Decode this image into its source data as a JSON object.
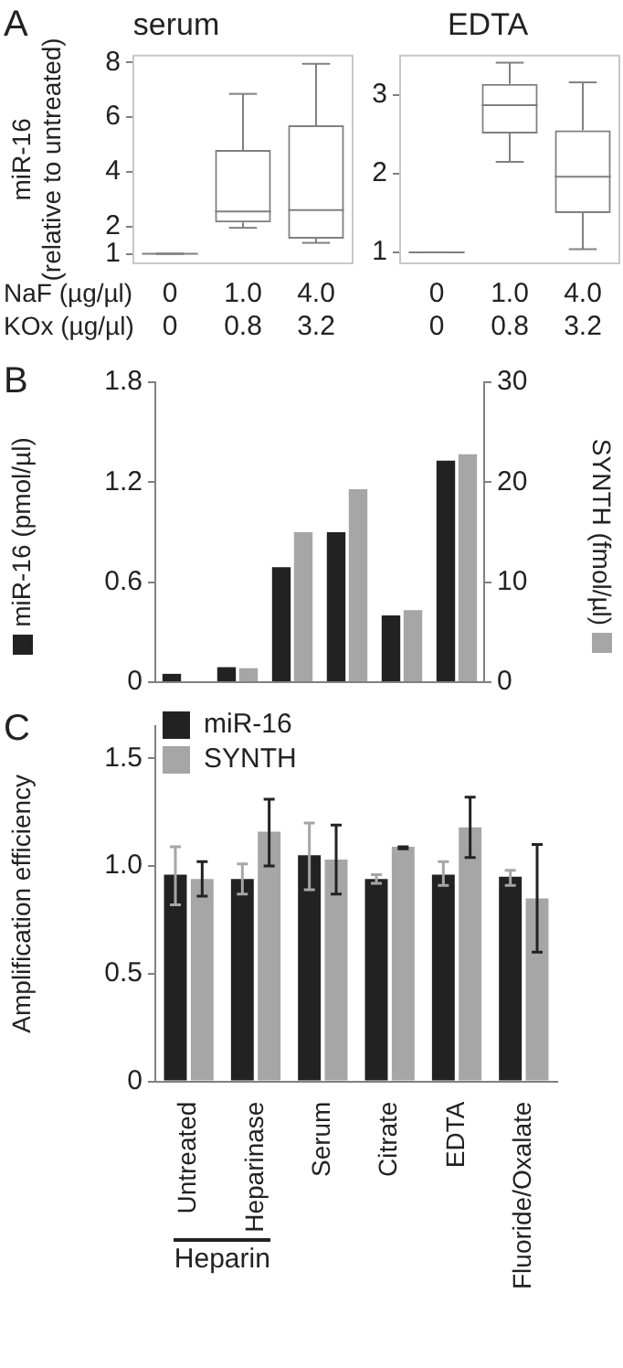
{
  "chart_data": [
    {
      "type": "box",
      "title": "serum",
      "ylabel": "miR-16\n(relative to untreated)",
      "annotations": [
        "A",
        "NaF (µg/µl)",
        "KOx (µg/µl)"
      ],
      "categories": [
        "0\n0",
        "1.0\n0.8",
        "4.0\n3.2"
      ],
      "color": "#808080",
      "ylim": [
        0.65,
        8.25
      ],
      "yticks": [
        1,
        2,
        4,
        6,
        8
      ],
      "grid": false,
      "legend": false,
      "boxes": [
        {
          "low": 1,
          "q1": 1,
          "median": 1,
          "q3": 1,
          "high": 1
        },
        {
          "low": 1.95,
          "q1": 2.15,
          "median": 2.55,
          "q3": 4.8,
          "high": 6.85
        },
        {
          "low": 1.4,
          "q1": 1.55,
          "median": 2.6,
          "q3": 5.7,
          "high": 7.95
        }
      ]
    },
    {
      "type": "box",
      "title": "EDTA",
      "categories": [
        "0\n0",
        "1.0\n0.8",
        "4.0\n3.2"
      ],
      "color": "#808080",
      "ylim": [
        0.86,
        3.5
      ],
      "yticks": [
        1,
        2,
        3
      ],
      "grid": false,
      "legend": false,
      "boxes": [
        {
          "low": 1,
          "q1": 1,
          "median": 1,
          "q3": 1,
          "high": 1
        },
        {
          "low": 2.15,
          "q1": 2.51,
          "median": 2.87,
          "q3": 3.14,
          "high": 3.41
        },
        {
          "low": 1.04,
          "q1": 1.5,
          "median": 1.96,
          "q3": 2.55,
          "high": 3.16
        }
      ]
    },
    {
      "type": "bar",
      "annotations": [
        "B"
      ],
      "ylabel": "miR-16 (pmol/µl)",
      "y2label": "SYNTH (fmol/µl)",
      "categories": [
        null,
        null,
        null,
        null,
        null,
        null
      ],
      "ylim": [
        0,
        1.8
      ],
      "yticks": [
        0,
        0.6,
        1.2,
        1.8
      ],
      "y2lim": [
        0,
        30
      ],
      "y2ticks": [
        0,
        10,
        20,
        30
      ],
      "grid": false,
      "legend": false,
      "series": [
        {
          "color": "#222222",
          "values": [
            0.05,
            0.09,
            0.69,
            0.9,
            0.4,
            1.33
          ]
        },
        {
          "color": "#a6a6a6",
          "axis": "y2",
          "values": [
            0,
            1.4,
            15,
            19.3,
            7.2,
            22.8
          ]
        }
      ]
    },
    {
      "type": "bar",
      "annotations": [
        "C",
        "Heparin"
      ],
      "ylabel": "Amplification efficiency",
      "categories": [
        "Untreated",
        "Heparinase",
        "Serum",
        "Citrate",
        "EDTA",
        "Fluoride/Oxalate"
      ],
      "ylim": [
        0,
        1.65
      ],
      "yticks": [
        0,
        0.5,
        {
          "value": 1,
          "label": "1.0"
        },
        1.5
      ],
      "grid": false,
      "legend": "top left",
      "series": [
        {
          "name": "miR-16",
          "color": "#222222",
          "values": [
            0.96,
            0.94,
            1.05,
            0.94,
            0.96,
            0.95
          ],
          "errors": [
            [
              0.82,
              1.09
            ],
            [
              0.87,
              1.01
            ],
            [
              0.89,
              1.2
            ],
            [
              0.92,
              0.96
            ],
            [
              0.91,
              1.02
            ],
            [
              0.91,
              0.98
            ]
          ]
        },
        {
          "name": "SYNTH",
          "color": "#a6a6a6",
          "values": [
            0.94,
            1.16,
            1.03,
            1.09,
            1.18,
            0.85
          ],
          "errors": [
            [
              0.86,
              1.02
            ],
            [
              1.0,
              1.31
            ],
            [
              0.87,
              1.19
            ],
            [
              1.08,
              1.09
            ],
            [
              1.04,
              1.32
            ],
            [
              0.6,
              1.1
            ]
          ]
        }
      ]
    }
  ]
}
